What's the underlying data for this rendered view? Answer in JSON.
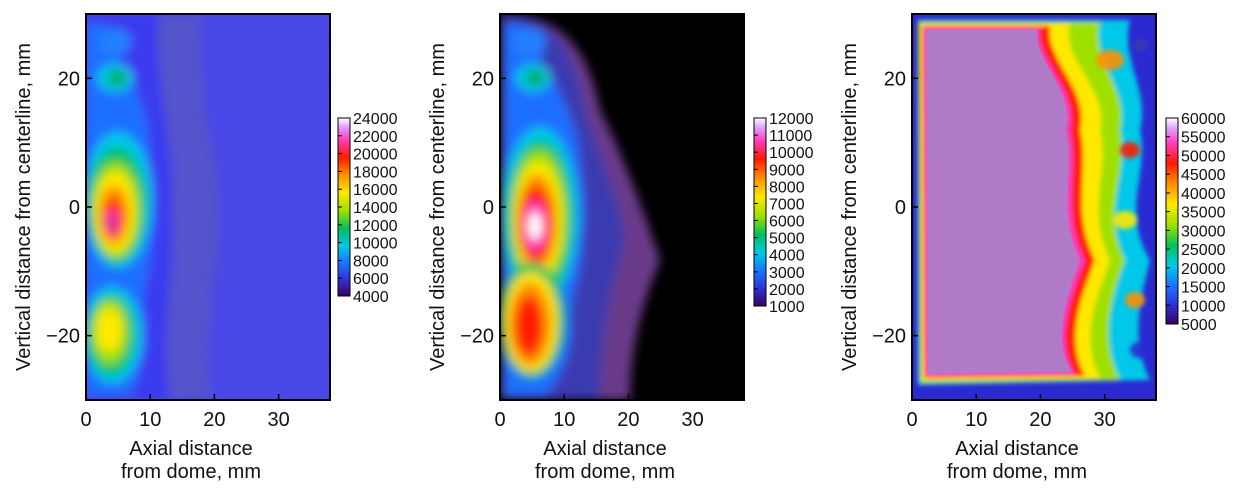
{
  "chart_data": [
    {
      "type": "heatmap",
      "xlabel": [
        "Axial distance",
        "from dome, mm"
      ],
      "ylabel": "Vertical distance from centerline, mm",
      "xlim": [
        0,
        38
      ],
      "ylim": [
        -30,
        30
      ],
      "xticks": [
        "0",
        "10",
        "20",
        "30"
      ],
      "yticks": [
        "20",
        "0",
        "−20"
      ],
      "background_hex": "#4848e6",
      "colorbar": {
        "labels": [
          "24000",
          "22000",
          "20000",
          "18000",
          "16000",
          "14000",
          "12000",
          "10000",
          "8000",
          "6000",
          "4000"
        ],
        "range": [
          4000,
          24000
        ]
      },
      "regions": [
        {
          "x": 3.5,
          "y": 23,
          "level": 0.38
        },
        {
          "x": 3.5,
          "y": 20,
          "level": 0.44
        },
        {
          "x": 5,
          "y": 0,
          "level": 1.0
        },
        {
          "x": 5,
          "y": -19,
          "level": 0.72
        },
        {
          "x": 16,
          "y": 0,
          "level": 0.1
        }
      ]
    },
    {
      "type": "heatmap",
      "xlabel": [
        "Axial distance",
        "from dome, mm"
      ],
      "ylabel": "Vertical distance from centerline, mm",
      "xlim": [
        0,
        38
      ],
      "ylim": [
        -30,
        30
      ],
      "xticks": [
        "0",
        "10",
        "20",
        "30"
      ],
      "yticks": [
        "20",
        "0",
        "−20"
      ],
      "background_hex": "#000000",
      "colorbar": {
        "labels": [
          "12000",
          "11000",
          "10000",
          "9000",
          "8000",
          "7000",
          "6000",
          "5000",
          "4000",
          "3000",
          "2000",
          "1000"
        ],
        "range": [
          1000,
          12000
        ]
      },
      "regions": [
        {
          "x": 3.5,
          "y": 24,
          "level": 0.3
        },
        {
          "x": 3.5,
          "y": 20,
          "level": 0.42
        },
        {
          "x": 5.5,
          "y": -2,
          "level": 1.0
        },
        {
          "x": 5,
          "y": -18,
          "level": 0.8
        },
        {
          "x": 18,
          "y": 0,
          "level": 0.12
        }
      ]
    },
    {
      "type": "heatmap",
      "xlabel": [
        "Axial distance",
        "from dome, mm"
      ],
      "ylabel": "Vertical distance from centerline, mm",
      "xlim": [
        0,
        38
      ],
      "ylim": [
        -30,
        30
      ],
      "xticks": [
        "0",
        "10",
        "20",
        "30"
      ],
      "yticks": [
        "20",
        "0",
        "−20"
      ],
      "background_hex": "#b07ac8",
      "colorbar": {
        "labels": [
          "60000",
          "55000",
          "50000",
          "45000",
          "40000",
          "35000",
          "30000",
          "25000",
          "20000",
          "15000",
          "10000",
          "5000"
        ],
        "range": [
          5000,
          60000
        ]
      },
      "regions": [
        {
          "x": 12,
          "y": 2,
          "level": 0.92
        },
        {
          "x": 33,
          "y": 20,
          "level": 0.35
        },
        {
          "x": 32,
          "y": -6,
          "level": 0.4
        },
        {
          "x": 33,
          "y": -22,
          "level": 0.45
        }
      ]
    }
  ],
  "colors": {
    "scale": [
      "#3a0060",
      "#3030d0",
      "#1a70ff",
      "#00c8e8",
      "#00c060",
      "#a0e000",
      "#ffe800",
      "#ff9000",
      "#ff1a00",
      "#ff40c0",
      "#e0a0ff",
      "#ffffff"
    ],
    "panel3_fill": "#b07ac8"
  }
}
